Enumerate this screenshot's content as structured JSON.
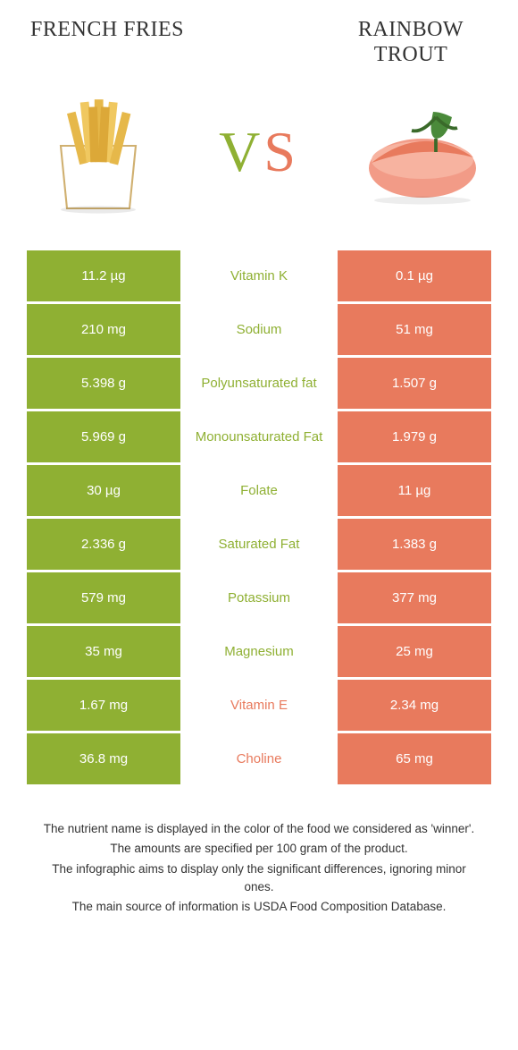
{
  "header": {
    "left": "FRENCH FRIES",
    "right": "RAINBOW TROUT"
  },
  "vs": {
    "v": "V",
    "s": "S"
  },
  "colors": {
    "left": "#8fb033",
    "right": "#e87a5d",
    "text": "#333333",
    "bg": "#ffffff"
  },
  "rows": [
    {
      "left": "11.2 µg",
      "label": "Vitamin K",
      "right": "0.1 µg",
      "winner": "left"
    },
    {
      "left": "210 mg",
      "label": "Sodium",
      "right": "51 mg",
      "winner": "left"
    },
    {
      "left": "5.398 g",
      "label": "Polyunsaturated fat",
      "right": "1.507 g",
      "winner": "left"
    },
    {
      "left": "5.969 g",
      "label": "Monounsaturated Fat",
      "right": "1.979 g",
      "winner": "left"
    },
    {
      "left": "30 µg",
      "label": "Folate",
      "right": "11 µg",
      "winner": "left"
    },
    {
      "left": "2.336 g",
      "label": "Saturated Fat",
      "right": "1.383 g",
      "winner": "left"
    },
    {
      "left": "579 mg",
      "label": "Potassium",
      "right": "377 mg",
      "winner": "left"
    },
    {
      "left": "35 mg",
      "label": "Magnesium",
      "right": "25 mg",
      "winner": "left"
    },
    {
      "left": "1.67 mg",
      "label": "Vitamin E",
      "right": "2.34 mg",
      "winner": "right"
    },
    {
      "left": "36.8 mg",
      "label": "Choline",
      "right": "65 mg",
      "winner": "right"
    }
  ],
  "footer": {
    "line1": "The nutrient name is displayed in the color of the food we considered as 'winner'.",
    "line2": "The amounts are specified per 100 gram of the product.",
    "line3": "The infographic aims to display only the significant differences, ignoring minor ones.",
    "line4": "The main source of information is USDA Food Composition Database."
  }
}
